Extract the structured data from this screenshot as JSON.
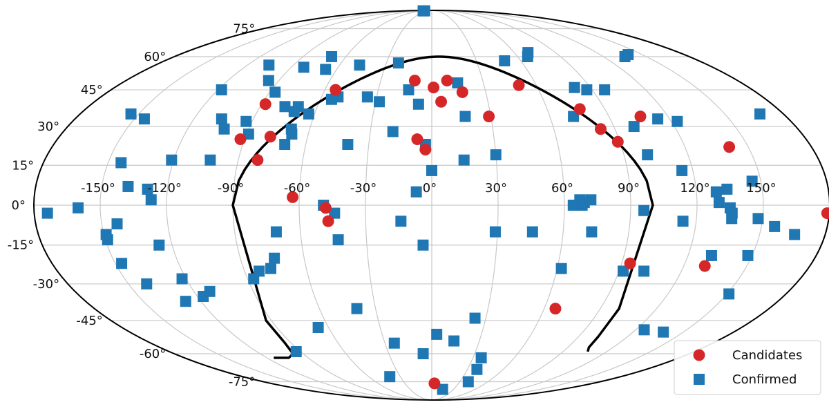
{
  "chart_data": {
    "type": "scatter",
    "projection": "mollweide",
    "grid": true,
    "x_ticks": [
      "-150°",
      "-120°",
      "-90°",
      "-60°",
      "-30°",
      "0°",
      "30°",
      "60°",
      "90°",
      "120°",
      "150°"
    ],
    "y_ticks": [
      "75°",
      "60°",
      "45°",
      "30°",
      "15°",
      "0°",
      "-15°",
      "-30°",
      "-45°",
      "-60°",
      "-75°"
    ],
    "legend": {
      "position": "bottom-right",
      "entries": [
        "Candidates",
        "Confirmed"
      ]
    },
    "colors": {
      "Candidates": "#d62728",
      "Confirmed": "#1f77b4",
      "boundary": "#000000",
      "grid": "#c8c8c8"
    },
    "series": [
      {
        "name": "Candidates",
        "marker": "circle",
        "points": [
          [
            -88,
            39
          ],
          [
            -92,
            25
          ],
          [
            -78,
            26
          ],
          [
            -81,
            17
          ],
          [
            -63,
            3
          ],
          [
            -54,
            45
          ],
          [
            -48,
            -1
          ],
          [
            -47,
            -6
          ],
          [
            -10,
            49
          ],
          [
            1,
            46
          ],
          [
            5,
            40
          ],
          [
            9,
            49
          ],
          [
            17,
            44
          ],
          [
            29,
            34
          ],
          [
            -7,
            25
          ],
          [
            -3,
            21
          ],
          [
            50,
            47
          ],
          [
            77,
            37
          ],
          [
            83,
            29
          ],
          [
            89,
            24
          ],
          [
            106,
            34
          ],
          [
            141,
            22
          ],
          [
            179,
            -3
          ],
          [
            94,
            -22
          ],
          [
            130,
            -23
          ],
          [
            66,
            -40
          ],
          [
            3,
            -76
          ]
        ]
      },
      {
        "name": "Confirmed",
        "marker": "square",
        "points": [
          [
            -55,
            89
          ],
          [
            -45,
            89
          ],
          [
            -70,
            60
          ],
          [
            -106,
            56
          ],
          [
            -82,
            55
          ],
          [
            -96,
            49
          ],
          [
            -67,
            54
          ],
          [
            -47,
            56
          ],
          [
            -118,
            45
          ],
          [
            -87,
            44
          ],
          [
            -77,
            38
          ],
          [
            -70,
            38
          ],
          [
            -71,
            36
          ],
          [
            -63,
            35
          ],
          [
            -54,
            41
          ],
          [
            -51,
            42
          ],
          [
            -35,
            42
          ],
          [
            -28,
            40
          ],
          [
            -13,
            45
          ],
          [
            -7,
            39
          ],
          [
            -22,
            57
          ],
          [
            15,
            48
          ],
          [
            17,
            34
          ],
          [
            49,
            58
          ],
          [
            67,
            60
          ],
          [
            70,
            62
          ],
          [
            81,
            46
          ],
          [
            87,
            45
          ],
          [
            97,
            45
          ],
          [
            135,
            60
          ],
          [
            140,
            61
          ],
          [
            114,
            33
          ],
          [
            123,
            32
          ],
          [
            72,
            34
          ],
          [
            168,
            35
          ],
          [
            -154,
            35
          ],
          [
            -145,
            33
          ],
          [
            -106,
            33
          ],
          [
            -102,
            29
          ],
          [
            -93,
            32
          ],
          [
            -89,
            27
          ],
          [
            -69,
            29
          ],
          [
            -68,
            27
          ],
          [
            -70,
            23
          ],
          [
            -40,
            23
          ],
          [
            -19,
            28
          ],
          [
            -3,
            23
          ],
          [
            30,
            19
          ],
          [
            15,
            17
          ],
          [
            100,
            30
          ],
          [
            101,
            19
          ],
          [
            -144,
            16
          ],
          [
            -103,
            17
          ],
          [
            -121,
            17
          ],
          [
            115,
            13
          ],
          [
            0,
            13
          ],
          [
            -129,
            6
          ],
          [
            -127,
            2
          ],
          [
            -138,
            7
          ],
          [
            -143,
            -7
          ],
          [
            -149,
            -13
          ],
          [
            -149,
            -11
          ],
          [
            -126,
            -15
          ],
          [
            -49,
            0
          ],
          [
            -44,
            -3
          ],
          [
            -14,
            -6
          ],
          [
            -7,
            5
          ],
          [
            -71,
            -10
          ],
          [
            -74,
            -20
          ],
          [
            -43,
            -13
          ],
          [
            -4,
            -15
          ],
          [
            29,
            -10
          ],
          [
            46,
            -10
          ],
          [
            64,
            0
          ],
          [
            67,
            2
          ],
          [
            68,
            0
          ],
          [
            69,
            1
          ],
          [
            72,
            2
          ],
          [
            73,
            -10
          ],
          [
            96,
            -2
          ],
          [
            114,
            -6
          ],
          [
            129,
            5
          ],
          [
            134,
            6
          ],
          [
            130,
            1
          ],
          [
            135,
            -1
          ],
          [
            136,
            -3
          ],
          [
            136,
            -5
          ],
          [
            148,
            -5
          ],
          [
            146,
            9
          ],
          [
            156,
            -8
          ],
          [
            166,
            -11
          ],
          [
            -174,
            -3
          ],
          [
            -160,
            -1
          ],
          [
            -147,
            -22
          ],
          [
            -141,
            -30
          ],
          [
            -122,
            -28
          ],
          [
            -112,
            -33
          ],
          [
            -117,
            -35
          ],
          [
            -83,
            -25
          ],
          [
            -77,
            -24
          ],
          [
            -87,
            -28
          ],
          [
            -40,
            -40
          ],
          [
            -66,
            -48
          ],
          [
            62,
            -24
          ],
          [
            92,
            -25
          ],
          [
            102,
            -25
          ],
          [
            131,
            -19
          ],
          [
            148,
            -19
          ],
          [
            151,
            -34
          ],
          [
            24,
            -44
          ],
          [
            3,
            -51
          ],
          [
            14,
            -54
          ],
          [
            -6,
            -60
          ],
          [
            -24,
            -55
          ],
          [
            -40,
            -72
          ],
          [
            36,
            -62
          ],
          [
            38,
            -68
          ],
          [
            39,
            -75
          ],
          [
            15,
            -80
          ],
          [
            125,
            -49
          ],
          [
            138,
            -50
          ],
          [
            -128,
            -37
          ],
          [
            -93,
            -59
          ]
        ]
      }
    ]
  }
}
